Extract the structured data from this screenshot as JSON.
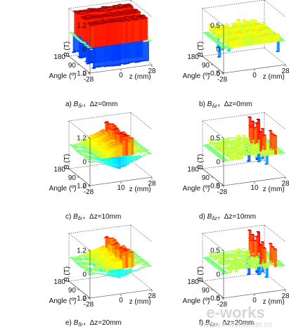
{
  "chart_data": [
    {
      "id": "a",
      "type": "surface3d",
      "caption": {
        "prefix": "a) ",
        "sym": "B",
        "sub": "δr",
        "suffix": "，Δz=0mm"
      },
      "zlabel": {
        "sym": "B",
        "unit": " (T)"
      },
      "xlabel": "z (mm)",
      "ylabel": "Angle (º)",
      "ztick_labels": [
        "1.2",
        "0",
        "-1.2"
      ],
      "ztick_values": [
        1.2,
        0,
        -1.2
      ],
      "xtick_labels": [
        "-28",
        "0",
        "28"
      ],
      "ytick_labels": [
        "180",
        "90",
        "0"
      ],
      "xlim": [
        -28,
        28
      ],
      "ylim": [
        0,
        180
      ],
      "zlim": [
        -1.2,
        1.2
      ],
      "component": "radial",
      "poles": 3,
      "pole_amplitude": 1.1,
      "edge_spike": 0.15
    },
    {
      "id": "b",
      "type": "surface3d",
      "caption": {
        "prefix": "b) ",
        "sym": "B",
        "sub": "δz",
        "suffix": "，Δz=0mm"
      },
      "zlabel": {
        "sym": "B",
        "unit": " (T)"
      },
      "xlabel": "z (mm)",
      "ylabel": "Angle (º)",
      "ztick_labels": [
        "0.5",
        "0",
        "-0.5"
      ],
      "ztick_values": [
        0.5,
        0,
        -0.5
      ],
      "xtick_labels": [
        "-28",
        "0",
        "28"
      ],
      "ytick_labels": [
        "180",
        "90",
        "0"
      ],
      "xlim": [
        -28,
        28
      ],
      "ylim": [
        0,
        180
      ],
      "zlim": [
        -0.5,
        0.5
      ],
      "component": "axial",
      "poles": 3,
      "pole_amplitude": 0.08,
      "edge_spike": 0.08
    },
    {
      "id": "c",
      "type": "surface3d",
      "caption": {
        "prefix": "c) ",
        "sym": "B",
        "sub": "δr",
        "suffix": "，Δz=10mm"
      },
      "zlabel": {
        "sym": "B",
        "unit": " (T)"
      },
      "xlabel": "z (mm)",
      "ylabel": "Angle (º)",
      "ztick_labels": [
        "1.2",
        "0",
        "-1.2"
      ],
      "ztick_values": [
        1.2,
        0,
        -1.2
      ],
      "xtick_labels": [
        "-28",
        "10",
        "28"
      ],
      "ytick_labels": [
        "180",
        "90",
        "0"
      ],
      "xlim": [
        -28,
        28
      ],
      "ylim": [
        0,
        180
      ],
      "zlim": [
        -1.2,
        1.2
      ],
      "component": "radial",
      "poles": 3,
      "pole_amplitude": 0.6,
      "edge_spike": 0.5
    },
    {
      "id": "d",
      "type": "surface3d",
      "caption": {
        "prefix": "d) ",
        "sym": "B",
        "sub": "δz",
        "suffix": "，Δz=10mm"
      },
      "zlabel": {
        "sym": "B",
        "unit": " (T)"
      },
      "xlabel": "z (mm)",
      "ylabel": "Angle (º)",
      "ztick_labels": [
        "0.5",
        "0",
        "-0.5"
      ],
      "ztick_values": [
        0.5,
        0,
        -0.5
      ],
      "xtick_labels": [
        "-28",
        "10",
        "28"
      ],
      "ytick_labels": [
        "180",
        "90",
        "0"
      ],
      "xlim": [
        -28,
        28
      ],
      "ylim": [
        0,
        180
      ],
      "zlim": [
        -0.5,
        0.5
      ],
      "component": "axial",
      "poles": 3,
      "pole_amplitude": 0.05,
      "edge_spike": 0.45
    },
    {
      "id": "e",
      "type": "surface3d",
      "caption": {
        "prefix": "e) ",
        "sym": "B",
        "sub": "δr",
        "suffix": "，Δz=20mm"
      },
      "zlabel": {
        "sym": "B",
        "unit": " (T)"
      },
      "xlabel": "z (mm)",
      "ylabel": "Angle (º)",
      "ztick_labels": [
        "1.2",
        "0",
        "-1.2"
      ],
      "ztick_values": [
        1.2,
        0,
        -1.2
      ],
      "xtick_labels": [
        "-28",
        "0",
        "28"
      ],
      "ytick_labels": [
        "180",
        "90",
        "0"
      ],
      "xlim": [
        -28,
        28
      ],
      "ylim": [
        0,
        180
      ],
      "zlim": [
        -1.2,
        1.2
      ],
      "component": "radial",
      "poles": 3,
      "pole_amplitude": 0.4,
      "edge_spike": 0.55
    },
    {
      "id": "f",
      "type": "surface3d",
      "caption": {
        "prefix": "f) ",
        "sym": "B",
        "sub": "δz",
        "suffix": "，Δz=20mm"
      },
      "zlabel": {
        "sym": "B",
        "unit": " (T)"
      },
      "xlabel": "z (mm)",
      "ylabel": "Angle (º)",
      "ztick_labels": [
        "0.5",
        "0",
        "-0.5"
      ],
      "ztick_values": [
        0.5,
        0,
        -0.5
      ],
      "xtick_labels": [
        "-28",
        "0",
        "28"
      ],
      "ytick_labels": [
        "180",
        "90",
        "0"
      ],
      "xlim": [
        -28,
        28
      ],
      "ylim": [
        0,
        180
      ],
      "zlim": [
        -0.5,
        0.5
      ],
      "component": "axial",
      "poles": 3,
      "pole_amplitude": 0.04,
      "edge_spike": 0.45
    }
  ],
  "watermark": {
    "text": "e-works",
    "sub": "www.e-works.net.cn"
  },
  "colors": {
    "axis": "#222222",
    "grid": "#333333",
    "background": "#ffffff"
  }
}
